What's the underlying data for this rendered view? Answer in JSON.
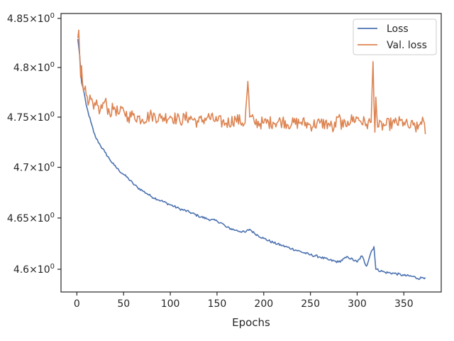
{
  "chart_data": {
    "type": "line",
    "title": "",
    "xlabel": "Epochs",
    "ylabel": "",
    "xlim": [
      -17,
      390
    ],
    "ylim": [
      4.578,
      4.855
    ],
    "yscale": "log",
    "grid": false,
    "legend_position": "top-right",
    "x_ticks": [
      0,
      50,
      100,
      150,
      200,
      250,
      300,
      350
    ],
    "x_tick_labels": [
      "0",
      "50",
      "100",
      "150",
      "200",
      "250",
      "300",
      "350"
    ],
    "y_ticks": [
      4.6,
      4.65,
      4.7,
      4.75,
      4.8,
      4.85
    ],
    "y_tick_labels": [
      {
        "base": "4.6",
        "exp": "0"
      },
      {
        "base": "4.65",
        "exp": "0"
      },
      {
        "base": "4.7",
        "exp": "0"
      },
      {
        "base": "4.75",
        "exp": "0"
      },
      {
        "base": "4.8",
        "exp": "0"
      },
      {
        "base": "4.85",
        "exp": "0"
      }
    ],
    "series": [
      {
        "name": "Loss",
        "color": "#4c72b0",
        "x": [
          1,
          3,
          5,
          8,
          10,
          12,
          15,
          18,
          20,
          25,
          30,
          35,
          40,
          45,
          50,
          55,
          60,
          65,
          70,
          75,
          80,
          90,
          100,
          110,
          120,
          130,
          140,
          150,
          155,
          160,
          170,
          180,
          185,
          190,
          200,
          210,
          220,
          230,
          240,
          250,
          260,
          270,
          280,
          290,
          300,
          305,
          310,
          315,
          318,
          320,
          330,
          340,
          350,
          360,
          365,
          370,
          373
        ],
        "y": [
          4.829,
          4.812,
          4.785,
          4.773,
          4.762,
          4.755,
          4.745,
          4.735,
          4.73,
          4.722,
          4.715,
          4.708,
          4.702,
          4.697,
          4.693,
          4.689,
          4.684,
          4.68,
          4.677,
          4.674,
          4.671,
          4.667,
          4.663,
          4.659,
          4.656,
          4.652,
          4.649,
          4.647,
          4.645,
          4.641,
          4.638,
          4.636,
          4.639,
          4.635,
          4.63,
          4.626,
          4.623,
          4.62,
          4.617,
          4.614,
          4.612,
          4.609,
          4.607,
          4.612,
          4.607,
          4.613,
          4.603,
          4.617,
          4.622,
          4.6,
          4.597,
          4.596,
          4.594,
          4.593,
          4.591,
          4.592,
          4.592
        ]
      },
      {
        "name": "Val. loss",
        "color": "#dd8452",
        "x": [
          1,
          2,
          3,
          4,
          5,
          6,
          8,
          10,
          12,
          15,
          18,
          20,
          25,
          30,
          35,
          40,
          45,
          50,
          55,
          60,
          70,
          80,
          90,
          100,
          110,
          120,
          130,
          140,
          150,
          160,
          170,
          180,
          183,
          185,
          190,
          200,
          210,
          220,
          230,
          240,
          250,
          260,
          270,
          275,
          280,
          285,
          290,
          300,
          310,
          315,
          317,
          319,
          320,
          322,
          330,
          340,
          350,
          355,
          360,
          365,
          370,
          373
        ],
        "y": [
          4.83,
          4.838,
          4.812,
          4.79,
          4.802,
          4.785,
          4.778,
          4.772,
          4.762,
          4.768,
          4.758,
          4.762,
          4.757,
          4.766,
          4.754,
          4.76,
          4.753,
          4.757,
          4.75,
          4.752,
          4.748,
          4.752,
          4.749,
          4.751,
          4.747,
          4.75,
          4.745,
          4.75,
          4.746,
          4.744,
          4.748,
          4.744,
          4.786,
          4.75,
          4.745,
          4.744,
          4.745,
          4.746,
          4.743,
          4.745,
          4.742,
          4.744,
          4.743,
          4.738,
          4.75,
          4.74,
          4.746,
          4.749,
          4.743,
          4.745,
          4.806,
          4.735,
          4.77,
          4.74,
          4.742,
          4.744,
          4.745,
          4.74,
          4.742,
          4.738,
          4.75,
          4.733
        ]
      }
    ]
  }
}
